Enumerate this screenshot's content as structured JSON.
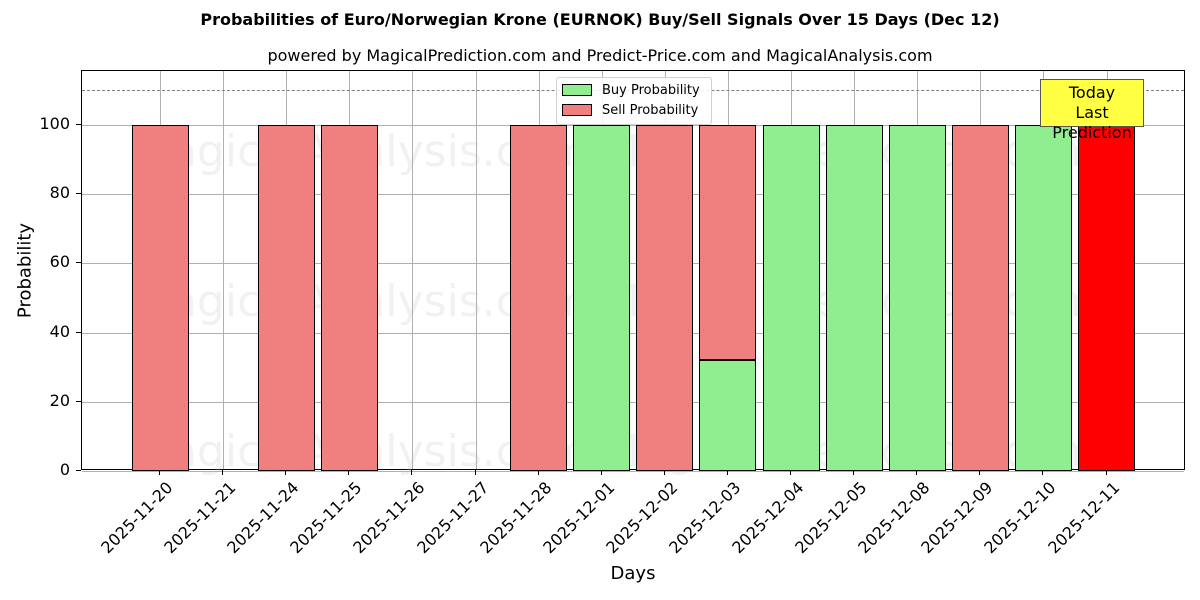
{
  "chart_data": {
    "type": "bar",
    "title": "Probabilities of Euro/Norwegian Krone (EURNOK) Buy/Sell Signals Over 15 Days (Dec 12)",
    "subtitle": "powered by MagicalPrediction.com and Predict-Price.com and MagicalAnalysis.com",
    "xlabel": "Days",
    "ylabel": "Probability",
    "ylim": [
      0,
      115
    ],
    "yticks": [
      0,
      20,
      40,
      60,
      80,
      100
    ],
    "grid": true,
    "stacked": true,
    "legend_position": "upper center",
    "categories": [
      "2025-11-20",
      "2025-11-21",
      "2025-11-24",
      "2025-11-25",
      "2025-11-26",
      "2025-11-27",
      "2025-11-28",
      "2025-12-01",
      "2025-12-02",
      "2025-12-03",
      "2025-12-04",
      "2025-12-05",
      "2025-12-08",
      "2025-12-09",
      "2025-12-10",
      "2025-12-11"
    ],
    "bar_slots": [
      "2025-11-20",
      "2025-11-24",
      "2025-11-25",
      "2025-11-28",
      "2025-12-01",
      "2025-12-02",
      "2025-12-03",
      "2025-12-04",
      "2025-12-05",
      "2025-12-08",
      "2025-12-09",
      "2025-12-10",
      "2025-12-11"
    ],
    "series": [
      {
        "name": "Buy Probability",
        "color": "#90ee90",
        "values": [
          0,
          0,
          0,
          0,
          100,
          0,
          32,
          100,
          100,
          100,
          0,
          100,
          0
        ]
      },
      {
        "name": "Sell Probability",
        "color": "#f08080",
        "values": [
          100,
          100,
          100,
          100,
          0,
          100,
          68,
          0,
          0,
          0,
          100,
          0,
          100
        ]
      }
    ],
    "highlight": {
      "index": 12,
      "color": "#ff0000",
      "label": "Today\nLast Prediction"
    },
    "reference_line": {
      "y": 110,
      "style": "dashed",
      "color": "#808080"
    },
    "annotation": {
      "line1": "Today",
      "line2": "Last Prediction",
      "bg": "#ffff44"
    },
    "watermarks": [
      "MagicalAnalysis.com",
      "MagicalPrediction.com"
    ]
  },
  "legend": {
    "buy": "Buy Probability",
    "sell": "Sell Probability"
  },
  "yticklabels": [
    "0",
    "20",
    "40",
    "60",
    "80",
    "100"
  ]
}
